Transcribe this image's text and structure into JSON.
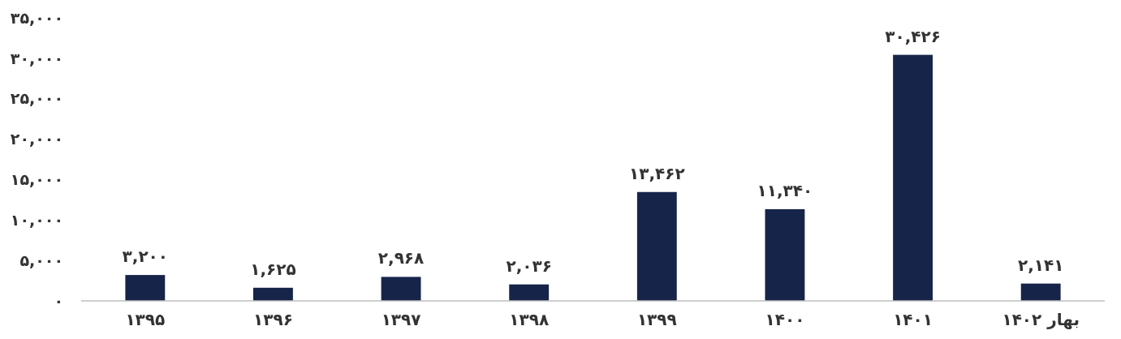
{
  "chart_data": {
    "type": "bar",
    "categories": [
      "۱۳۹۵",
      "۱۳۹۶",
      "۱۳۹۷",
      "۱۳۹۸",
      "۱۳۹۹",
      "۱۴۰۰",
      "۱۴۰۱",
      "بهار ۱۴۰۲"
    ],
    "values": [
      3200,
      1625,
      2968,
      2036,
      13462,
      11340,
      30426,
      2141
    ],
    "value_labels": [
      "۳,۲۰۰",
      "۱,۶۲۵",
      "۲,۹۶۸",
      "۲,۰۳۶",
      "۱۳,۴۶۲",
      "۱۱,۳۴۰",
      "۳۰,۴۲۶",
      "۲,۱۴۱"
    ],
    "color": "#16244a",
    "ylim": [
      0,
      35000
    ],
    "yticks": [
      {
        "value": 0,
        "label": "۰"
      },
      {
        "value": 5000,
        "label": "۵,۰۰۰"
      },
      {
        "value": 10000,
        "label": "۱۰,۰۰۰"
      },
      {
        "value": 15000,
        "label": "۱۵,۰۰۰"
      },
      {
        "value": 20000,
        "label": "۲۰,۰۰۰"
      },
      {
        "value": 25000,
        "label": "۲۵,۰۰۰"
      },
      {
        "value": 30000,
        "label": "۳۰,۰۰۰"
      },
      {
        "value": 35000,
        "label": "۳۵,۰۰۰"
      }
    ],
    "grid": false
  }
}
